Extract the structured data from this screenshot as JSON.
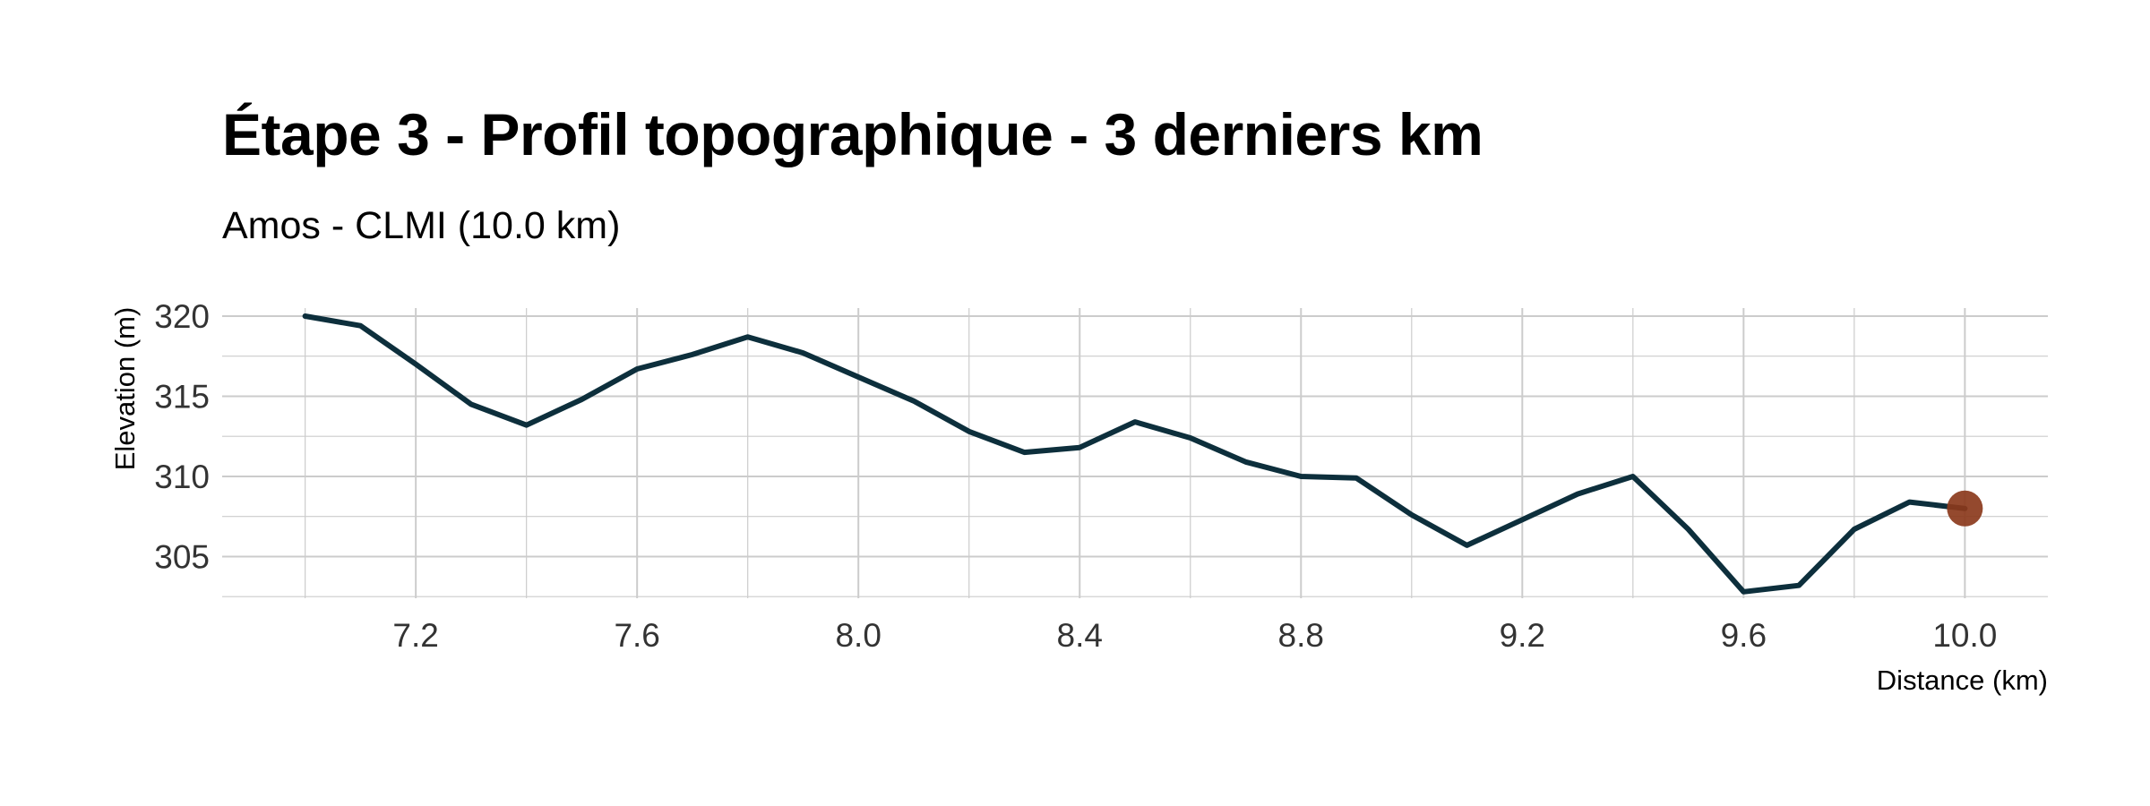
{
  "chart_data": {
    "type": "line",
    "title": "Étape 3 - Profil topographique - 3 derniers km",
    "subtitle": "Amos - CLMI (10.0 km)",
    "xlabel": "Distance (km)",
    "ylabel": "Elevation (m)",
    "xlim": [
      6.85,
      10.15
    ],
    "ylim": [
      302.4,
      320.5
    ],
    "x_ticks": [
      7.2,
      7.6,
      8.0,
      8.4,
      8.8,
      9.2,
      9.6,
      10.0
    ],
    "x_tick_labels": [
      "7.2",
      "7.6",
      "8.0",
      "8.4",
      "8.8",
      "9.2",
      "9.6",
      "10.0"
    ],
    "x_minor_ticks": [
      7.0,
      7.4,
      7.8,
      8.2,
      8.6,
      9.0,
      9.4,
      9.8
    ],
    "y_ticks": [
      305,
      310,
      315,
      320
    ],
    "y_tick_labels": [
      "305",
      "310",
      "315",
      "320"
    ],
    "y_minor_ticks": [
      302.5,
      307.5,
      312.5,
      317.5
    ],
    "grid": true,
    "series": [
      {
        "x": [
          7.0,
          7.1,
          7.2,
          7.3,
          7.4,
          7.5,
          7.6,
          7.7,
          7.8,
          7.9,
          8.0,
          8.1,
          8.2,
          8.3,
          8.4,
          8.5,
          8.6,
          8.7,
          8.8,
          8.9,
          9.0,
          9.1,
          9.2,
          9.3,
          9.4,
          9.5,
          9.6,
          9.7,
          9.8,
          9.9,
          10.0
        ],
        "y": [
          320.0,
          319.4,
          317.0,
          314.5,
          313.2,
          314.8,
          316.7,
          317.6,
          318.7,
          317.7,
          316.2,
          314.7,
          312.8,
          311.5,
          311.8,
          313.4,
          312.4,
          310.9,
          310.0,
          309.9,
          307.6,
          305.7,
          307.3,
          308.9,
          310.0,
          306.7,
          302.8,
          303.2,
          306.7,
          308.4,
          308.0
        ]
      }
    ],
    "end_marker": {
      "x": 10.0,
      "y": 308.0
    },
    "colors": {
      "line": "#0d2f3c",
      "marker": "#8b3a1c",
      "grid": "#cccccc"
    }
  }
}
